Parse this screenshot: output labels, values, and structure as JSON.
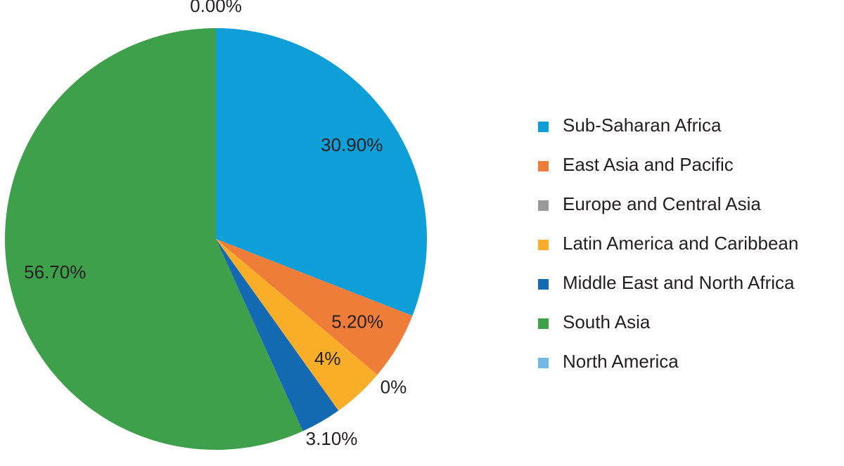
{
  "chart_data": {
    "type": "pie",
    "categories": [
      "Sub-Saharan Africa",
      "East Asia and Pacific",
      "Europe and Central Asia",
      "Latin America and Caribbean",
      "Middle East and North Africa",
      "South Asia",
      "North America"
    ],
    "values": [
      30.9,
      5.2,
      0,
      4,
      3.1,
      56.7,
      0
    ],
    "value_labels": [
      "30.90%",
      "5.20%",
      "0%",
      "4%",
      "3.10%",
      "56.70%",
      "0.00%"
    ],
    "colors": [
      "#0f9fd8",
      "#ee7d3a",
      "#9a9a9a",
      "#f9ae2a",
      "#1469b3",
      "#3fa04b",
      "#72b8e4"
    ],
    "legend": "right"
  }
}
